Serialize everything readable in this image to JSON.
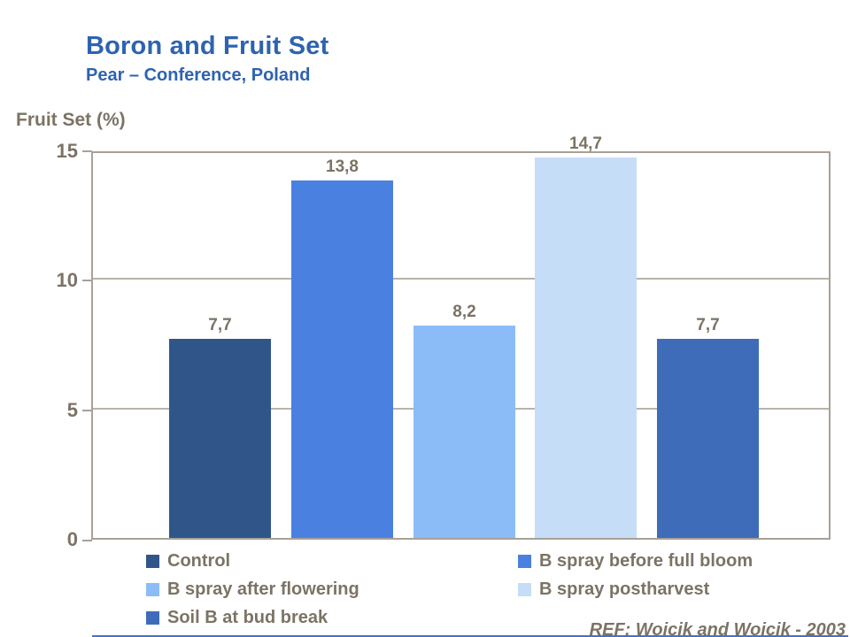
{
  "slide": {
    "title": "Boron and Fruit Set",
    "subtitle": "Pear – Conference, Poland",
    "reference": "REF: Wojcik and Wojcik - 2003",
    "accent_line_color": "#4472c4"
  },
  "chart_data": {
    "type": "bar",
    "title": "Boron and Fruit Set",
    "subtitle": "Pear – Conference, Poland",
    "ylabel": "Fruit Set (%)",
    "xlabel": "",
    "ylim": [
      0,
      15
    ],
    "yticks": [
      0,
      5,
      10,
      15
    ],
    "ytick_labels": [
      "0",
      "5",
      "10",
      "15"
    ],
    "grid": "horizontal gridlines at 5 and 10, full plot border",
    "legend_position": "bottom, two columns, row-major order",
    "categories": [
      "Control",
      "B spray before full bloom",
      "B spray after flowering",
      "B spray postharvest",
      "Soil B at bud break"
    ],
    "values": [
      7.7,
      13.8,
      8.2,
      14.7,
      7.7
    ],
    "value_labels": [
      "7,7",
      "13,8",
      "8,2",
      "14,7",
      "7,7"
    ],
    "bar_colors": [
      "#305689",
      "#4a80e0",
      "#8cbcf8",
      "#c6ddf8",
      "#3e6cb8"
    ]
  },
  "colors": {
    "title_blue": "#2e63b0",
    "text_gray": "#7b7365",
    "axis_line": "#a8a199",
    "gridline": "#b9b3ab"
  }
}
